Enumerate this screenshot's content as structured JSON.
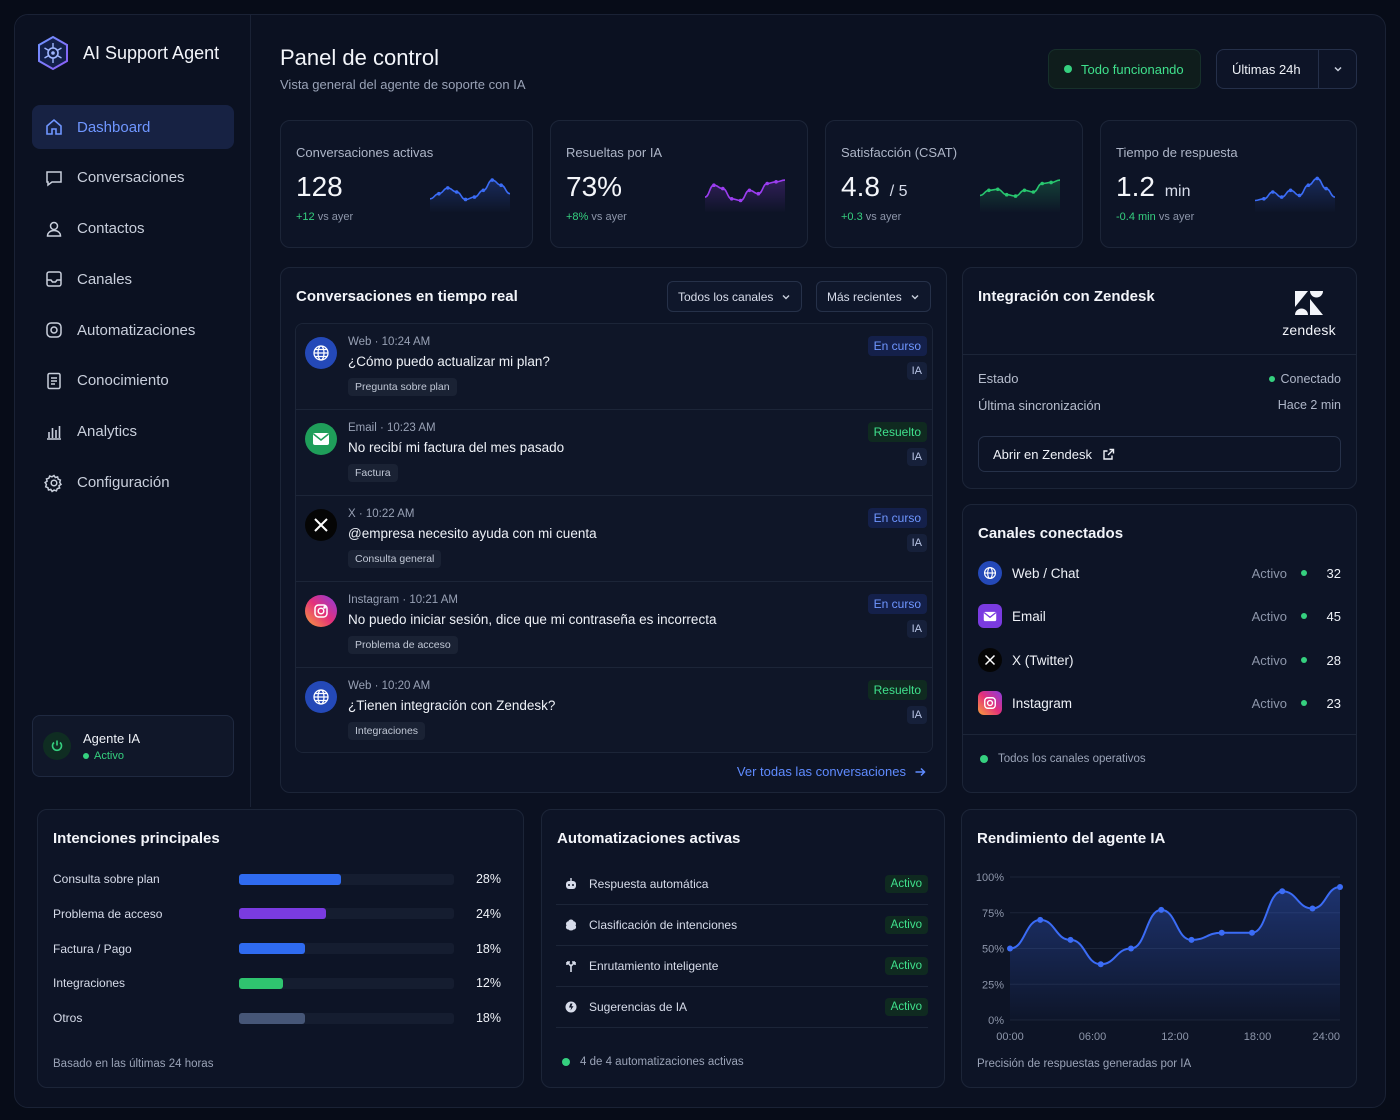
{
  "app": {
    "name": "AI Support Agent"
  },
  "nav": [
    {
      "label": "Dashboard",
      "icon": "home-icon",
      "active": true
    },
    {
      "label": "Conversaciones",
      "icon": "chat-icon"
    },
    {
      "label": "Contactos",
      "icon": "user-icon"
    },
    {
      "label": "Canales",
      "icon": "inbox-icon"
    },
    {
      "label": "Automatizaciones",
      "icon": "automation-icon"
    },
    {
      "label": "Conocimiento",
      "icon": "book-icon"
    },
    {
      "label": "Analytics",
      "icon": "bar-chart-icon"
    },
    {
      "label": "Configuración",
      "icon": "gear-icon"
    }
  ],
  "agent": {
    "name": "Agente IA",
    "status": "Activo"
  },
  "header": {
    "title": "Panel de control",
    "subtitle": "Vista general del agente de soporte con IA",
    "status": "Todo funcionando",
    "range": "Últimas 24h"
  },
  "kpis": [
    {
      "label": "Conversaciones activas",
      "value": "128",
      "unit": "",
      "delta": "+12",
      "delta_suffix": "vs ayer",
      "color": "#3b6cf6",
      "spark": [
        0.3,
        0.45,
        0.62,
        0.5,
        0.28,
        0.35,
        0.55,
        0.85,
        0.7,
        0.45
      ]
    },
    {
      "label": "Resueltas por IA",
      "value": "73%",
      "unit": "",
      "delta": "+8%",
      "delta_suffix": "vs ayer",
      "color": "#9b3df0",
      "spark": [
        0.35,
        0.7,
        0.6,
        0.3,
        0.25,
        0.55,
        0.45,
        0.75,
        0.8,
        0.85
      ]
    },
    {
      "label": "Satisfacción (CSAT)",
      "value": "4.8",
      "unit": "/ 5",
      "delta": "+0.3",
      "delta_suffix": "vs ayer",
      "color": "#28c76f",
      "spark": [
        0.4,
        0.55,
        0.58,
        0.42,
        0.38,
        0.55,
        0.5,
        0.75,
        0.78,
        0.85
      ]
    },
    {
      "label": "Tiempo de respuesta",
      "value": "1.2",
      "unit": "min",
      "delta": "-0.4 min",
      "delta_suffix": "vs ayer",
      "color": "#3b6cf6",
      "spark": [
        0.25,
        0.3,
        0.5,
        0.35,
        0.55,
        0.4,
        0.7,
        0.9,
        0.6,
        0.35
      ]
    }
  ],
  "conversations": {
    "title": "Conversaciones en tiempo real",
    "filter_channel": "Todos los canales",
    "filter_sort": "Más recientes",
    "view_all": "Ver todas las conversaciones",
    "items": [
      {
        "channel": "web",
        "meta": "Web · 10:24 AM",
        "text": "¿Cómo puedo actualizar mi plan?",
        "tag": "Pregunta sobre plan",
        "status": "En curso",
        "status_kind": "curso",
        "badge": "IA"
      },
      {
        "channel": "email",
        "meta": "Email · 10:23 AM",
        "text": "No recibí mi factura del mes pasado",
        "tag": "Factura",
        "status": "Resuelto",
        "status_kind": "res",
        "badge": "IA"
      },
      {
        "channel": "x",
        "meta": "X · 10:22 AM",
        "text": "@empresa necesito ayuda con mi cuenta",
        "tag": "Consulta general",
        "status": "En curso",
        "status_kind": "curso",
        "badge": "IA"
      },
      {
        "channel": "instagram",
        "meta": "Instagram · 10:21 AM",
        "text": "No puedo iniciar sesión, dice que mi contraseña es incorrecta",
        "tag": "Problema de acceso",
        "status": "En curso",
        "status_kind": "curso",
        "badge": "IA"
      },
      {
        "channel": "web",
        "meta": "Web · 10:20 AM",
        "text": "¿Tienen integración con Zendesk?",
        "tag": "Integraciones",
        "status": "Resuelto",
        "status_kind": "res",
        "badge": "IA"
      }
    ]
  },
  "zendesk": {
    "title": "Integración con Zendesk",
    "logo_text": "zendesk",
    "state_label": "Estado",
    "state_value": "Conectado",
    "sync_label": "Última sincronización",
    "sync_value": "Hace 2 min",
    "open_button": "Abrir en Zendesk"
  },
  "channels": {
    "title": "Canales conectados",
    "items": [
      {
        "channel": "web",
        "name": "Web / Chat",
        "state": "Activo",
        "count": "32"
      },
      {
        "channel": "email",
        "name": "Email",
        "state": "Activo",
        "count": "45"
      },
      {
        "channel": "x",
        "name": "X (Twitter)",
        "state": "Activo",
        "count": "28"
      },
      {
        "channel": "instagram",
        "name": "Instagram",
        "state": "Activo",
        "count": "23"
      }
    ],
    "footer": "Todos los canales operativos"
  },
  "intents": {
    "title": "Intenciones principales",
    "items": [
      {
        "label": "Consulta sobre plan",
        "value": 28,
        "pct": "28%",
        "color": "#2f6bf0"
      },
      {
        "label": "Problema de acceso",
        "value": 24,
        "pct": "24%",
        "color": "#7a3be0"
      },
      {
        "label": "Factura / Pago",
        "value": 18,
        "pct": "18%",
        "color": "#2f6bf0"
      },
      {
        "label": "Integraciones",
        "value": 12,
        "pct": "12%",
        "color": "#2fc46f"
      },
      {
        "label": "Otros",
        "value": 18,
        "pct": "18%",
        "color": "#465677"
      }
    ],
    "footer": "Basado en las últimas 24 horas"
  },
  "automations": {
    "title": "Automatizaciones activas",
    "items": [
      {
        "name": "Respuesta automática",
        "state": "Activo",
        "icon": "bot-icon"
      },
      {
        "name": "Clasificación de intenciones",
        "state": "Activo",
        "icon": "brain-icon"
      },
      {
        "name": "Enrutamiento inteligente",
        "state": "Activo",
        "icon": "route-icon"
      },
      {
        "name": "Sugerencias de IA",
        "state": "Activo",
        "icon": "spark-icon"
      }
    ],
    "footer": "4 de 4 automatizaciones activas"
  },
  "performance": {
    "title": "Rendimiento del agente IA",
    "caption": "Precisión de respuestas generadas por IA"
  },
  "chart_data": {
    "type": "area",
    "title": "Rendimiento del agente IA",
    "xlabel": "",
    "ylabel": "",
    "x_ticks": [
      "00:00",
      "06:00",
      "12:00",
      "18:00",
      "24:00"
    ],
    "y_ticks": [
      "0%",
      "25%",
      "50%",
      "75%",
      "100%"
    ],
    "ylim": [
      0,
      100
    ],
    "xlim": [
      0,
      24
    ],
    "x": [
      0,
      2.2,
      4.4,
      6.6,
      8.8,
      11,
      13.2,
      15.4,
      17.6,
      19.8,
      22,
      24
    ],
    "y": [
      50,
      70,
      56,
      39,
      50,
      77,
      56,
      61,
      61,
      90,
      78,
      93
    ],
    "grid": true,
    "color": "#3b6cf6"
  }
}
